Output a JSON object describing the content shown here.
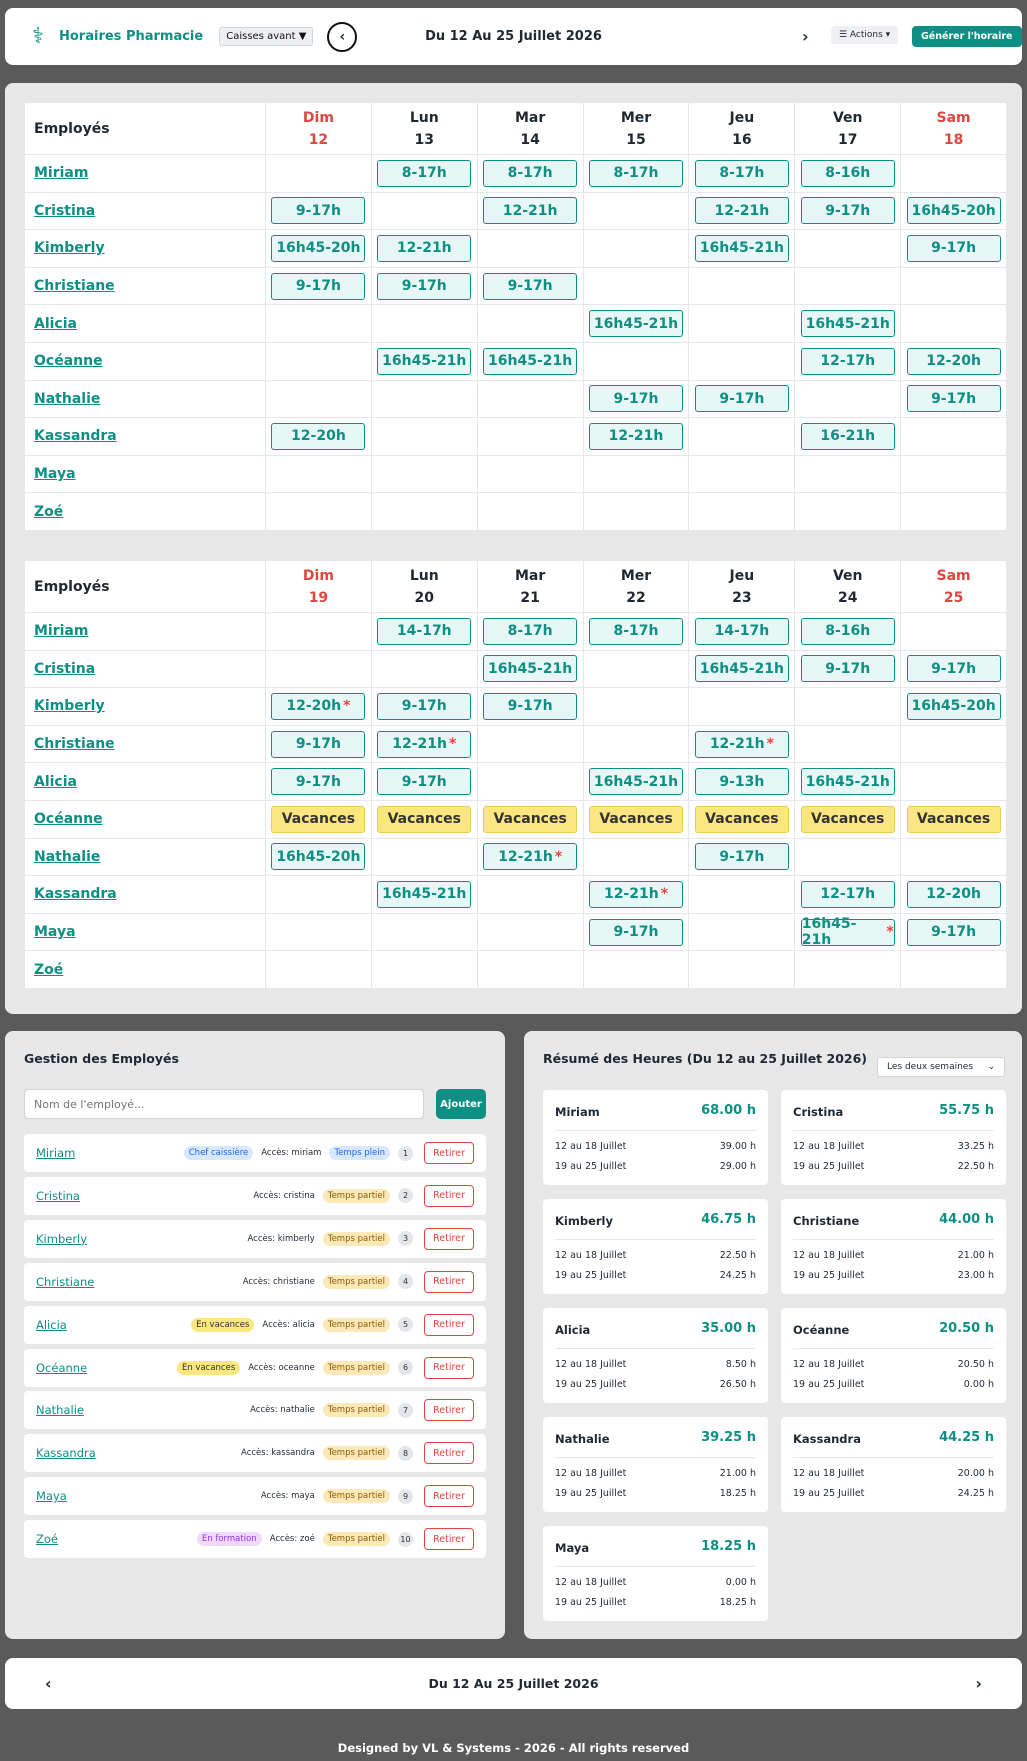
{
  "header": {
    "brand": "Horaires Pharmacie",
    "dept": "Caisses avant",
    "title": "Du 12 Au 25 Juillet 2026",
    "actions": "☰ Actions ▾",
    "generate": "Générer l'horaire"
  },
  "weeks": [
    {
      "employee_header": "Employés",
      "days": [
        {
          "name": "Dim",
          "num": "12",
          "weekend": true
        },
        {
          "name": "Lun",
          "num": "13",
          "weekend": false
        },
        {
          "name": "Mar",
          "num": "14",
          "weekend": false
        },
        {
          "name": "Mer",
          "num": "15",
          "weekend": false
        },
        {
          "name": "Jeu",
          "num": "16",
          "weekend": false
        },
        {
          "name": "Ven",
          "num": "17",
          "weekend": false
        },
        {
          "name": "Sam",
          "num": "18",
          "weekend": true
        }
      ],
      "rows": [
        {
          "name": "Miriam",
          "shifts": [
            "",
            "8-17h",
            "8-17h",
            "8-17h",
            "8-17h",
            "8-16h",
            ""
          ]
        },
        {
          "name": "Cristina",
          "shifts": [
            "9-17h",
            "",
            "12-21h",
            "",
            "12-21h",
            "9-17h",
            "16h45-20h"
          ]
        },
        {
          "name": "Kimberly",
          "shifts": [
            "16h45-20h",
            "12-21h",
            "",
            "",
            "16h45-21h",
            "",
            "9-17h"
          ]
        },
        {
          "name": "Christiane",
          "shifts": [
            "9-17h",
            "9-17h",
            "9-17h",
            "",
            "",
            "",
            ""
          ]
        },
        {
          "name": "Alicia",
          "shifts": [
            "",
            "",
            "",
            "16h45-21h",
            "",
            "16h45-21h",
            ""
          ]
        },
        {
          "name": "Océanne",
          "shifts": [
            "",
            "16h45-21h",
            "16h45-21h",
            "",
            "",
            "12-17h",
            "12-20h"
          ]
        },
        {
          "name": "Nathalie",
          "shifts": [
            "",
            "",
            "",
            "9-17h",
            "9-17h",
            "",
            "9-17h"
          ]
        },
        {
          "name": "Kassandra",
          "shifts": [
            "12-20h",
            "",
            "",
            "12-21h",
            "",
            "16-21h",
            ""
          ]
        },
        {
          "name": "Maya",
          "shifts": [
            "",
            "",
            "",
            "",
            "",
            "",
            ""
          ]
        },
        {
          "name": "Zoé",
          "shifts": [
            "",
            "",
            "",
            "",
            "",
            "",
            ""
          ]
        }
      ]
    },
    {
      "employee_header": "Employés",
      "days": [
        {
          "name": "Dim",
          "num": "19",
          "weekend": true
        },
        {
          "name": "Lun",
          "num": "20",
          "weekend": false
        },
        {
          "name": "Mar",
          "num": "21",
          "weekend": false
        },
        {
          "name": "Mer",
          "num": "22",
          "weekend": false
        },
        {
          "name": "Jeu",
          "num": "23",
          "weekend": false
        },
        {
          "name": "Ven",
          "num": "24",
          "weekend": false
        },
        {
          "name": "Sam",
          "num": "25",
          "weekend": true
        }
      ],
      "rows": [
        {
          "name": "Miriam",
          "shifts": [
            "",
            "14-17h",
            "8-17h",
            "8-17h",
            "14-17h",
            "8-16h",
            ""
          ]
        },
        {
          "name": "Cristina",
          "shifts": [
            "",
            "",
            "16h45-21h",
            "",
            "16h45-21h",
            "9-17h",
            "9-17h"
          ]
        },
        {
          "name": "Kimberly",
          "shifts": [
            "12-20h*",
            "9-17h",
            "9-17h",
            "",
            "",
            "",
            "16h45-20h"
          ]
        },
        {
          "name": "Christiane",
          "shifts": [
            "9-17h",
            "12-21h*",
            "",
            "",
            "12-21h*",
            "",
            ""
          ]
        },
        {
          "name": "Alicia",
          "shifts": [
            "9-17h",
            "9-17h",
            "",
            "16h45-21h",
            "9-13h",
            "16h45-21h",
            ""
          ]
        },
        {
          "name": "Océanne",
          "shifts": [
            "Vacances",
            "Vacances",
            "Vacances",
            "Vacances",
            "Vacances",
            "Vacances",
            "Vacances"
          ]
        },
        {
          "name": "Nathalie",
          "shifts": [
            "16h45-20h",
            "",
            "12-21h*",
            "",
            "9-17h",
            "",
            ""
          ]
        },
        {
          "name": "Kassandra",
          "shifts": [
            "",
            "16h45-21h",
            "",
            "12-21h*",
            "",
            "12-17h",
            "12-20h"
          ]
        },
        {
          "name": "Maya",
          "shifts": [
            "",
            "",
            "",
            "9-17h",
            "",
            "16h45-21h*",
            "9-17h"
          ]
        },
        {
          "name": "Zoé",
          "shifts": [
            "",
            "",
            "",
            "",
            "",
            "",
            ""
          ]
        }
      ]
    }
  ],
  "employees_panel": {
    "title": "Gestion des Employés",
    "placeholder": "Nom de l'employé...",
    "add": "Ajouter",
    "remove": "Retirer",
    "list": [
      {
        "name": "Miriam",
        "extra": "Chef caissière",
        "extra_type": "chef",
        "access": "Accès: miriam",
        "status": "Temps plein",
        "status_type": "full",
        "num": "1"
      },
      {
        "name": "Cristina",
        "extra": "",
        "extra_type": "",
        "access": "Accès: cristina",
        "status": "Temps partiel",
        "status_type": "part",
        "num": "2"
      },
      {
        "name": "Kimberly",
        "extra": "",
        "extra_type": "",
        "access": "Accès: kimberly",
        "status": "Temps partiel",
        "status_type": "part",
        "num": "3"
      },
      {
        "name": "Christiane",
        "extra": "",
        "extra_type": "",
        "access": "Accès: christiane",
        "status": "Temps partiel",
        "status_type": "part",
        "num": "4"
      },
      {
        "name": "Alicia",
        "extra": "En vacances",
        "extra_type": "vac",
        "access": "Accès: alicia",
        "status": "Temps partiel",
        "status_type": "part",
        "num": "5"
      },
      {
        "name": "Océanne",
        "extra": "En vacances",
        "extra_type": "vac",
        "access": "Accès: oceanne",
        "status": "Temps partiel",
        "status_type": "part",
        "num": "6"
      },
      {
        "name": "Nathalie",
        "extra": "",
        "extra_type": "",
        "access": "Accès: nathalie",
        "status": "Temps partiel",
        "status_type": "part",
        "num": "7"
      },
      {
        "name": "Kassandra",
        "extra": "",
        "extra_type": "",
        "access": "Accès: kassandra",
        "status": "Temps partiel",
        "status_type": "part",
        "num": "8"
      },
      {
        "name": "Maya",
        "extra": "",
        "extra_type": "",
        "access": "Accès: maya",
        "status": "Temps partiel",
        "status_type": "part",
        "num": "9"
      },
      {
        "name": "Zoé",
        "extra": "En formation",
        "extra_type": "form",
        "access": "Accès: zoé",
        "status": "Temps partiel",
        "status_type": "part",
        "num": "10"
      }
    ]
  },
  "summary": {
    "title": "Résumé des Heures (Du 12 au 25 Juillet 2026)",
    "filter": "Les deux semaines",
    "week1_label": "12 au 18 Juillet",
    "week2_label": "19 au 25 Juillet",
    "cards": [
      {
        "name": "Miriam",
        "total": "68.00 h",
        "w1": "39.00 h",
        "w2": "29.00 h"
      },
      {
        "name": "Cristina",
        "total": "55.75 h",
        "w1": "33.25 h",
        "w2": "22.50 h"
      },
      {
        "name": "Kimberly",
        "total": "46.75 h",
        "w1": "22.50 h",
        "w2": "24.25 h"
      },
      {
        "name": "Christiane",
        "total": "44.00 h",
        "w1": "21.00 h",
        "w2": "23.00 h"
      },
      {
        "name": "Alicia",
        "total": "35.00 h",
        "w1": "8.50 h",
        "w2": "26.50 h"
      },
      {
        "name": "Océanne",
        "total": "20.50 h",
        "w1": "20.50 h",
        "w2": "0.00 h"
      },
      {
        "name": "Nathalie",
        "total": "39.25 h",
        "w1": "21.00 h",
        "w2": "18.25 h"
      },
      {
        "name": "Kassandra",
        "total": "44.25 h",
        "w1": "20.00 h",
        "w2": "24.25 h"
      },
      {
        "name": "Maya",
        "total": "18.25 h",
        "w1": "0.00 h",
        "w2": "18.25 h"
      }
    ]
  },
  "bottom": {
    "title": "Du 12 Au 25 Juillet 2026"
  },
  "footer": "Designed by VL & Systems - 2026 - All rights reserved",
  "colors": {
    "accent": "#0f8f84",
    "weekend": "#e0463f",
    "vacation": "#fbe77f"
  }
}
